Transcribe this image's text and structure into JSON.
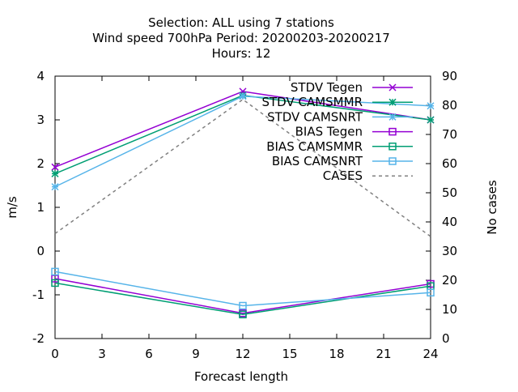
{
  "chart_data": {
    "type": "line",
    "title_lines": [
      "Selection: ALL using     7 stations",
      "Wind speed 700hPa   Period: 20200203-20200217",
      "Hours:  12"
    ],
    "xlabel": "Forecast length",
    "ylabel": "m/s",
    "y2label": "No cases",
    "x": [
      0,
      12,
      24
    ],
    "xlim": [
      0,
      24
    ],
    "xticks": [
      0,
      3,
      6,
      9,
      12,
      15,
      18,
      21,
      24
    ],
    "ylim": [
      -2,
      4
    ],
    "yticks": [
      -2,
      -1,
      0,
      1,
      2,
      3,
      4
    ],
    "y2lim": [
      0,
      90
    ],
    "y2ticks": [
      0,
      10,
      20,
      30,
      40,
      50,
      60,
      70,
      80,
      90
    ],
    "grid": false,
    "legend_position": "top-right",
    "series": [
      {
        "name": "STDV Tegen",
        "color": "#9400d3",
        "marker": "x",
        "axis": "y1",
        "values": [
          1.92,
          3.65,
          3.0
        ]
      },
      {
        "name": "STDV CAMSMMR",
        "color": "#009e73",
        "marker": "star",
        "axis": "y1",
        "values": [
          1.77,
          3.56,
          3.0
        ]
      },
      {
        "name": "STDV CAMSNRT",
        "color": "#56b4e9",
        "marker": "star",
        "axis": "y1",
        "values": [
          1.47,
          3.54,
          3.32
        ]
      },
      {
        "name": "BIAS Tegen",
        "color": "#9400d3",
        "marker": "square",
        "axis": "y1",
        "values": [
          -0.63,
          -1.42,
          -0.75
        ]
      },
      {
        "name": "BIAS CAMSMMR",
        "color": "#009e73",
        "marker": "square",
        "axis": "y1",
        "values": [
          -0.73,
          -1.45,
          -0.8
        ]
      },
      {
        "name": "BIAS CAMSNRT",
        "color": "#56b4e9",
        "marker": "square",
        "axis": "y1",
        "values": [
          -0.47,
          -1.25,
          -0.95
        ]
      },
      {
        "name": "CASES",
        "color": "#808080",
        "marker": "none",
        "dash": true,
        "axis": "y2",
        "values": [
          36,
          82,
          35
        ]
      }
    ]
  }
}
